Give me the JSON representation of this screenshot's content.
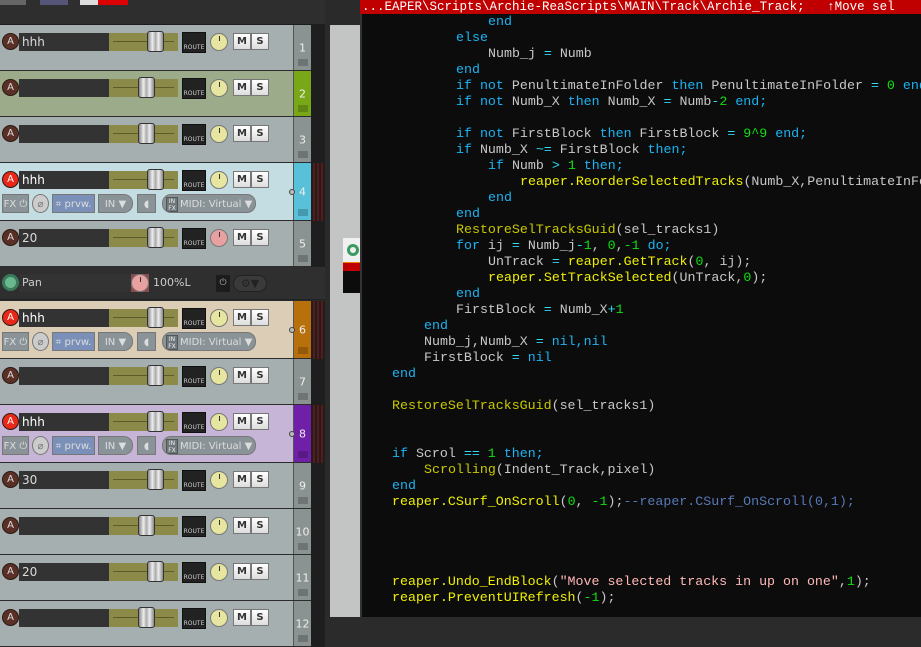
{
  "tracks": [
    {
      "number": "1",
      "name": "hhh",
      "color": "#a6afaf",
      "num_color": "#8a9292",
      "armed": false,
      "fader": 0.72,
      "knob": "volume",
      "expanded": false
    },
    {
      "number": "2",
      "name": "",
      "color": "#9cab8a",
      "num_color": "#78a818",
      "armed": false,
      "fader": 0.6,
      "knob": "volume",
      "expanded": false
    },
    {
      "number": "3",
      "name": "",
      "color": "#a6afaf",
      "num_color": "#8a9292",
      "armed": false,
      "fader": 0.6,
      "knob": "volume",
      "expanded": false
    },
    {
      "number": "4",
      "name": "hhh",
      "color": "#c4dde2",
      "num_color": "#58c0d8",
      "armed": true,
      "fader": 0.72,
      "knob": "volume",
      "expanded": true,
      "meter": true
    },
    {
      "number": "5",
      "name": "20",
      "color": "#a6afaf",
      "num_color": "#8a9292",
      "armed": false,
      "fader": 0.72,
      "knob": "pan",
      "expanded": false
    },
    {
      "number": "6",
      "name": "hhh",
      "color": "#dccdb6",
      "num_color": "#b8700c",
      "armed": true,
      "fader": 0.72,
      "knob": "volume",
      "expanded": true,
      "meter": true
    },
    {
      "number": "7",
      "name": "",
      "color": "#a6afaf",
      "num_color": "#8a9292",
      "armed": false,
      "fader": 0.72,
      "knob": "volume",
      "expanded": false
    },
    {
      "number": "8",
      "name": "hhh",
      "color": "#c6b5d6",
      "num_color": "#7020a8",
      "armed": true,
      "fader": 0.72,
      "knob": "volume",
      "expanded": true,
      "meter": true
    },
    {
      "number": "9",
      "name": "30",
      "color": "#a6afaf",
      "num_color": "#8a9292",
      "armed": false,
      "fader": 0.72,
      "knob": "volume",
      "expanded": false
    },
    {
      "number": "10",
      "name": "",
      "color": "#a6afaf",
      "num_color": "#8a9292",
      "armed": false,
      "fader": 0.6,
      "knob": "volume",
      "expanded": false
    },
    {
      "number": "11",
      "name": "20",
      "color": "#a6afaf",
      "num_color": "#8a9292",
      "armed": false,
      "fader": 0.72,
      "knob": "volume",
      "expanded": false
    },
    {
      "number": "12",
      "name": "",
      "color": "#a6afaf",
      "num_color": "#8a9292",
      "armed": false,
      "fader": 0.6,
      "knob": "volume",
      "expanded": false
    }
  ],
  "track_labels": {
    "arm": "A",
    "route": "ROUTE",
    "mute": "M",
    "solo": "S",
    "fx": "FX",
    "preview": "prvw.",
    "input": "IN",
    "midi_input": "MIDI: Virtual",
    "infx": "IN FX"
  },
  "envelope": {
    "name": "Pan",
    "value": "100%L"
  },
  "editor": {
    "title": "...EAPER\\Scripts\\Archie-ReaScripts\\MAIN\\Track\\Archie_Track;   ↑Move sel",
    "lines": [
      [
        3,
        [
          [
            "kw",
            "end"
          ]
        ]
      ],
      [
        2,
        [
          [
            "kw",
            "else"
          ]
        ]
      ],
      [
        3,
        [
          [
            "id",
            "Numb_j "
          ],
          [
            "op",
            "= "
          ],
          [
            "id",
            "Numb"
          ]
        ]
      ],
      [
        2,
        [
          [
            "kw",
            "end"
          ]
        ]
      ],
      [
        2,
        [
          [
            "kw",
            "if not "
          ],
          [
            "id",
            "PenultimateInFolder "
          ],
          [
            "kw",
            "then "
          ],
          [
            "id",
            "PenultimateInFolder "
          ],
          [
            "op",
            "= "
          ],
          [
            "num",
            "0 "
          ],
          [
            "kw",
            "end;"
          ]
        ]
      ],
      [
        2,
        [
          [
            "kw",
            "if not "
          ],
          [
            "id",
            "Numb_X "
          ],
          [
            "kw",
            "then "
          ],
          [
            "id",
            "Numb_X "
          ],
          [
            "op",
            "= "
          ],
          [
            "id",
            "Numb"
          ],
          [
            "op",
            "-"
          ],
          [
            "num",
            "2 "
          ],
          [
            "kw",
            "end;"
          ]
        ]
      ],
      [
        0,
        []
      ],
      [
        2,
        [
          [
            "kw",
            "if not "
          ],
          [
            "id",
            "FirstBlock "
          ],
          [
            "kw",
            "then "
          ],
          [
            "id",
            "FirstBlock "
          ],
          [
            "op",
            "= "
          ],
          [
            "num",
            "9^9 "
          ],
          [
            "kw",
            "end;"
          ]
        ]
      ],
      [
        2,
        [
          [
            "kw",
            "if "
          ],
          [
            "id",
            "Numb_X "
          ],
          [
            "op",
            "~= "
          ],
          [
            "id",
            "FirstBlock "
          ],
          [
            "kw",
            "then;"
          ]
        ]
      ],
      [
        3,
        [
          [
            "kw",
            "if "
          ],
          [
            "id",
            "Numb "
          ],
          [
            "op",
            "> "
          ],
          [
            "num",
            "1 "
          ],
          [
            "kw",
            "then;"
          ]
        ]
      ],
      [
        4,
        [
          [
            "fn",
            "reaper.ReorderSelectedTracks"
          ],
          [
            "pn",
            "(Numb_X,PenultimateInFolder"
          ]
        ]
      ],
      [
        3,
        [
          [
            "kw",
            "end"
          ]
        ]
      ],
      [
        2,
        [
          [
            "kw",
            "end"
          ]
        ]
      ],
      [
        2,
        [
          [
            "ufn",
            "RestoreSelTracksGuid"
          ],
          [
            "pn",
            "(sel_tracks1)"
          ]
        ]
      ],
      [
        2,
        [
          [
            "kw",
            "for "
          ],
          [
            "id",
            "ij "
          ],
          [
            "op",
            "= "
          ],
          [
            "id",
            "Numb_j"
          ],
          [
            "op",
            "-"
          ],
          [
            "num",
            "1"
          ],
          [
            "pn",
            ", "
          ],
          [
            "num",
            "0"
          ],
          [
            "pn",
            ","
          ],
          [
            "num",
            "-1 "
          ],
          [
            "kw",
            "do;"
          ]
        ]
      ],
      [
        3,
        [
          [
            "id",
            "UnTrack "
          ],
          [
            "op",
            "= "
          ],
          [
            "fn",
            "reaper.GetTrack"
          ],
          [
            "pn",
            "("
          ],
          [
            "num",
            "0"
          ],
          [
            "pn",
            ", ij);"
          ]
        ]
      ],
      [
        3,
        [
          [
            "fn",
            "reaper.SetTrackSelected"
          ],
          [
            "pn",
            "(UnTrack,"
          ],
          [
            "num",
            "0"
          ],
          [
            "pn",
            ");"
          ]
        ]
      ],
      [
        2,
        [
          [
            "kw",
            "end"
          ]
        ]
      ],
      [
        2,
        [
          [
            "id",
            "FirstBlock "
          ],
          [
            "op",
            "= "
          ],
          [
            "id",
            "Numb_X"
          ],
          [
            "op",
            "+"
          ],
          [
            "num",
            "1"
          ]
        ]
      ],
      [
        1,
        [
          [
            "kw",
            "end"
          ]
        ]
      ],
      [
        1,
        [
          [
            "id",
            "Numb_j,Numb_X "
          ],
          [
            "op",
            "= "
          ],
          [
            "kw",
            "nil,nil"
          ]
        ]
      ],
      [
        1,
        [
          [
            "id",
            "FirstBlock "
          ],
          [
            "op",
            "= "
          ],
          [
            "kw",
            "nil"
          ]
        ]
      ],
      [
        0,
        [
          [
            "kw",
            "end"
          ]
        ]
      ],
      [
        0,
        []
      ],
      [
        0,
        [
          [
            "ufn",
            "RestoreSelTracksGuid"
          ],
          [
            "pn",
            "(sel_tracks1)"
          ]
        ]
      ],
      [
        0,
        []
      ],
      [
        0,
        []
      ],
      [
        0,
        [
          [
            "kw",
            "if "
          ],
          [
            "id",
            "Scrol "
          ],
          [
            "op",
            "== "
          ],
          [
            "num",
            "1 "
          ],
          [
            "kw",
            "then;"
          ]
        ]
      ],
      [
        1,
        [
          [
            "ufn",
            "Scrolling"
          ],
          [
            "pn",
            "(Indent_Track,pixel)"
          ]
        ]
      ],
      [
        0,
        [
          [
            "kw",
            "end"
          ]
        ]
      ],
      [
        0,
        [
          [
            "fn",
            "reaper.CSurf_OnScroll"
          ],
          [
            "pn",
            "("
          ],
          [
            "num",
            "0"
          ],
          [
            "pn",
            ", "
          ],
          [
            "num",
            "-1"
          ],
          [
            "pn",
            ");"
          ],
          [
            "cm",
            "--reaper.CSurf_OnScroll(0,1);"
          ]
        ]
      ],
      [
        0,
        []
      ],
      [
        0,
        []
      ],
      [
        0,
        []
      ],
      [
        0,
        []
      ],
      [
        0,
        [
          [
            "fn",
            "reaper.Undo_EndBlock"
          ],
          [
            "pn",
            "("
          ],
          [
            "str",
            "\"Move selected tracks in up on one\""
          ],
          [
            "pn",
            ","
          ],
          [
            "num",
            "1"
          ],
          [
            "pn",
            ");"
          ]
        ]
      ],
      [
        0,
        [
          [
            "fn",
            "reaper.PreventUIRefresh"
          ],
          [
            "pn",
            "("
          ],
          [
            "num",
            "-1"
          ],
          [
            "pn",
            ");"
          ]
        ]
      ]
    ]
  }
}
